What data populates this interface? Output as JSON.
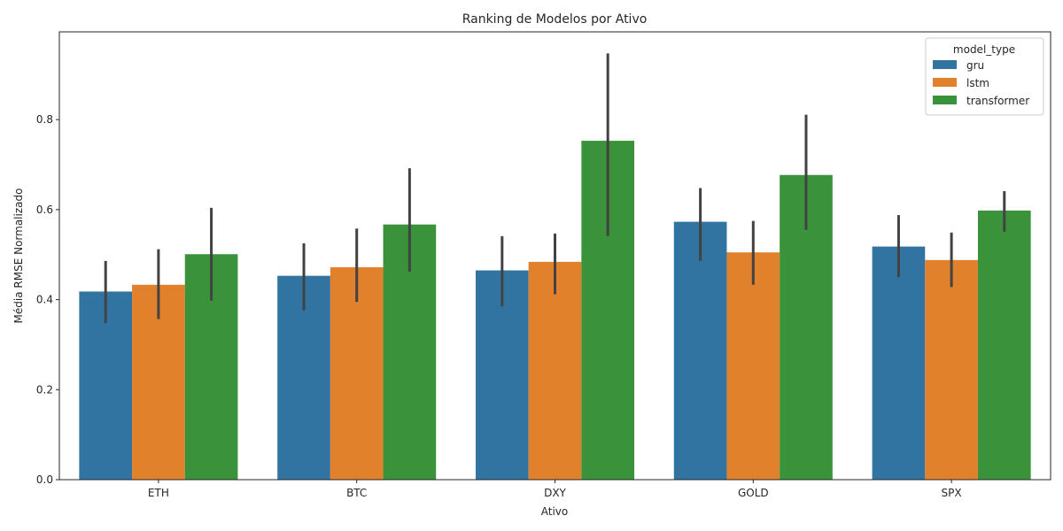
{
  "chart_data": {
    "type": "bar",
    "title": "Ranking de Modelos por Ativo",
    "xlabel": "Ativo",
    "ylabel": "Média RMSE Normalizado",
    "ylim": [
      0,
      0.995
    ],
    "yticks": [
      0.0,
      0.2,
      0.4,
      0.6,
      0.8
    ],
    "ytick_labels": [
      "0.0",
      "0.2",
      "0.4",
      "0.6",
      "0.8"
    ],
    "grid": false,
    "legend": {
      "title": "model_type",
      "placement": "top-right"
    },
    "categories": [
      "ETH",
      "BTC",
      "DXY",
      "GOLD",
      "SPX"
    ],
    "series": [
      {
        "name": "gru",
        "color": "#3274a1",
        "values": [
          0.418,
          0.453,
          0.465,
          0.573,
          0.518
        ],
        "ci_low": [
          0.348,
          0.376,
          0.385,
          0.486,
          0.45
        ],
        "ci_high": [
          0.486,
          0.525,
          0.541,
          0.648,
          0.588
        ]
      },
      {
        "name": "lstm",
        "color": "#e1812c",
        "values": [
          0.433,
          0.472,
          0.484,
          0.505,
          0.488
        ],
        "ci_low": [
          0.357,
          0.395,
          0.412,
          0.433,
          0.428
        ],
        "ci_high": [
          0.512,
          0.558,
          0.547,
          0.575,
          0.549
        ]
      },
      {
        "name": "transformer",
        "color": "#3a923a",
        "values": [
          0.501,
          0.567,
          0.753,
          0.677,
          0.598
        ],
        "ci_low": [
          0.398,
          0.462,
          0.541,
          0.555,
          0.551
        ],
        "ci_high": [
          0.604,
          0.692,
          0.947,
          0.811,
          0.641
        ]
      }
    ],
    "errorbar_color": "#424242"
  }
}
